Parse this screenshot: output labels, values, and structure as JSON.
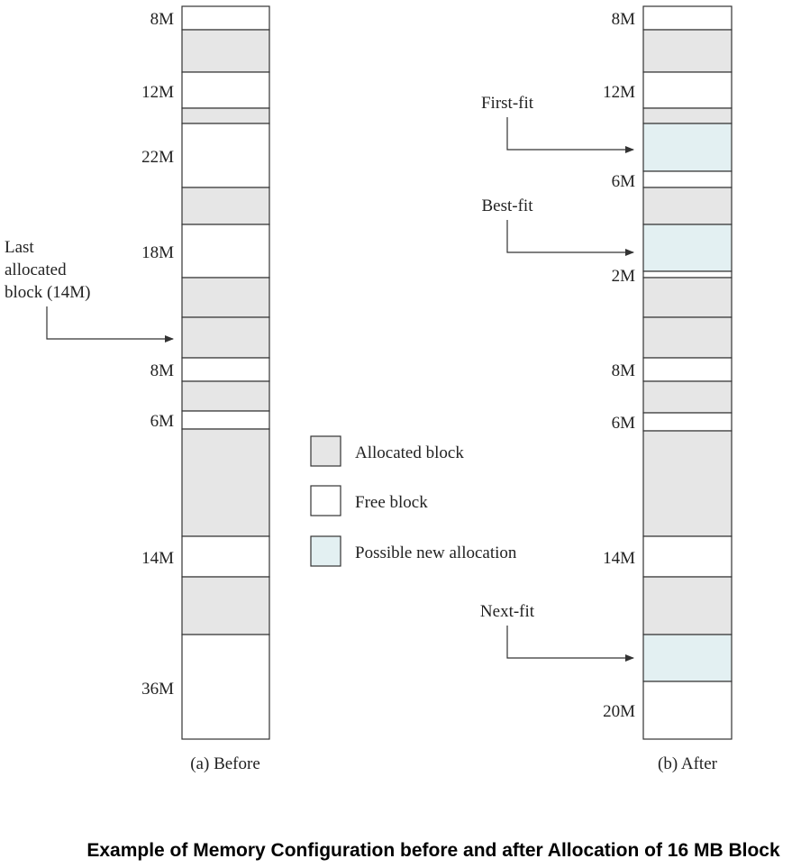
{
  "colors": {
    "allocated": "#e6e6e6",
    "free": "#ffffff",
    "possible": "#e3f0f2",
    "stroke": "#333333"
  },
  "before": {
    "caption": "(a) Before",
    "blocks": [
      {
        "type": "free",
        "size": "8M"
      },
      {
        "type": "allocated"
      },
      {
        "type": "free",
        "size": "12M"
      },
      {
        "type": "allocated"
      },
      {
        "type": "free",
        "size": "22M"
      },
      {
        "type": "allocated"
      },
      {
        "type": "free",
        "size": "18M"
      },
      {
        "type": "allocated"
      },
      {
        "type": "allocated"
      },
      {
        "type": "free",
        "size": "8M"
      },
      {
        "type": "allocated"
      },
      {
        "type": "free",
        "size": "6M"
      },
      {
        "type": "allocated"
      },
      {
        "type": "free",
        "size": "14M"
      },
      {
        "type": "allocated"
      },
      {
        "type": "free",
        "size": "36M"
      }
    ],
    "annotation": {
      "lines": [
        "Last",
        "allocated",
        "block (14M)"
      ],
      "target_block": 8
    }
  },
  "after": {
    "caption": "(b) After",
    "blocks": [
      {
        "type": "free",
        "size": "8M"
      },
      {
        "type": "allocated"
      },
      {
        "type": "free",
        "size": "12M"
      },
      {
        "type": "allocated"
      },
      {
        "type": "possible"
      },
      {
        "type": "free",
        "size": "6M"
      },
      {
        "type": "allocated"
      },
      {
        "type": "possible"
      },
      {
        "type": "free",
        "size": "2M"
      },
      {
        "type": "allocated"
      },
      {
        "type": "allocated"
      },
      {
        "type": "free",
        "size": "8M"
      },
      {
        "type": "allocated"
      },
      {
        "type": "free",
        "size": "6M"
      },
      {
        "type": "allocated"
      },
      {
        "type": "free",
        "size": "14M"
      },
      {
        "type": "allocated"
      },
      {
        "type": "possible"
      },
      {
        "type": "free",
        "size": "20M"
      }
    ],
    "annotations": [
      {
        "label": "First-fit",
        "target_block": 4
      },
      {
        "label": "Best-fit",
        "target_block": 7
      },
      {
        "label": "Next-fit",
        "target_block": 17
      }
    ]
  },
  "legend": [
    {
      "type": "allocated",
      "label": "Allocated block"
    },
    {
      "type": "free",
      "label": "Free block"
    },
    {
      "type": "possible",
      "label": "Possible new allocation"
    }
  ],
  "caption": "Example of Memory Configuration before and after Allocation of 16 MB Block"
}
